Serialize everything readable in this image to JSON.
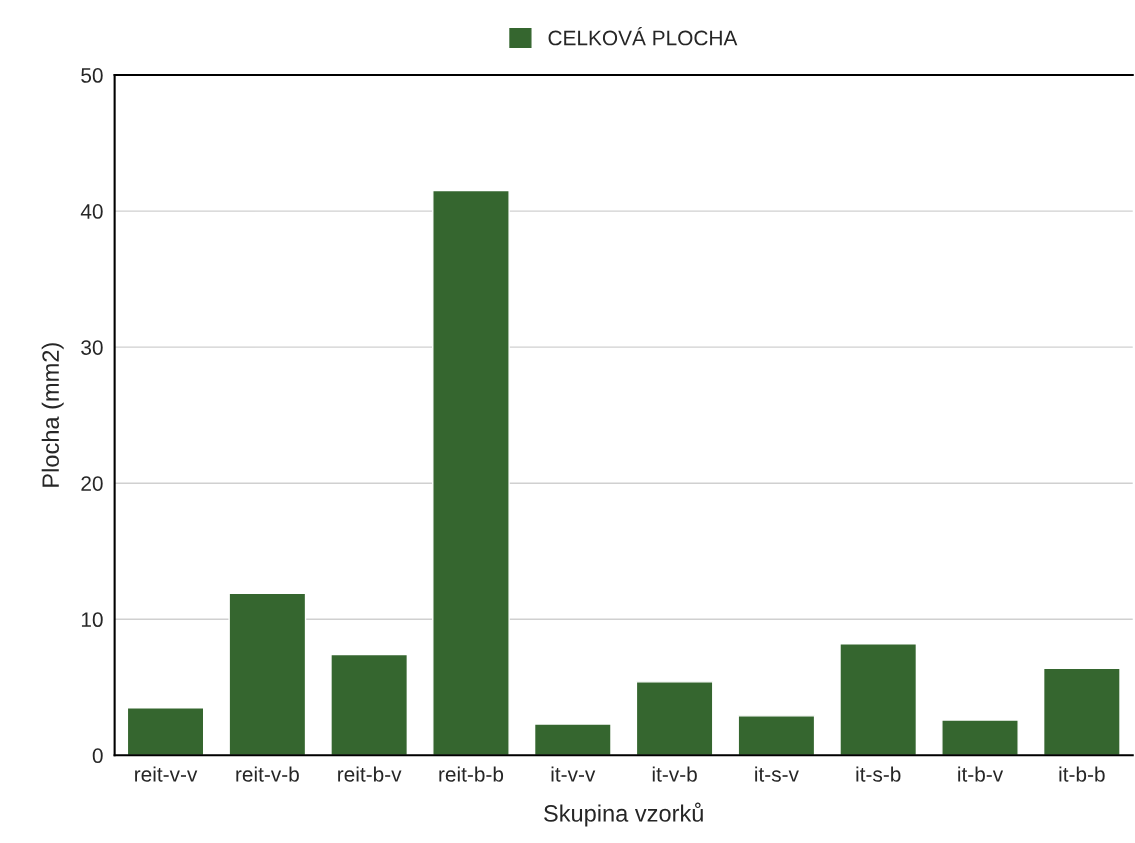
{
  "chart_data": {
    "type": "bar",
    "xlabel": "Skupina vzorků",
    "ylabel": "Plocha (mm2)",
    "categories": [
      "reit-v-v",
      "reit-v-b",
      "reit-b-v",
      "reit-b-b",
      "it-v-v",
      "it-v-b",
      "it-s-v",
      "it-s-b",
      "it-b-v",
      "it-b-b"
    ],
    "series": [
      {
        "name": "CELKOVÁ PLOCHA",
        "color": "#35662f",
        "values": [
          3.5,
          11.9,
          7.4,
          41.5,
          2.3,
          5.4,
          2.9,
          8.2,
          2.6,
          6.4
        ]
      }
    ],
    "ylim": [
      0,
      50
    ],
    "yticks": [
      0,
      10,
      20,
      30,
      40,
      50
    ],
    "grid": "y",
    "legend": "top"
  }
}
